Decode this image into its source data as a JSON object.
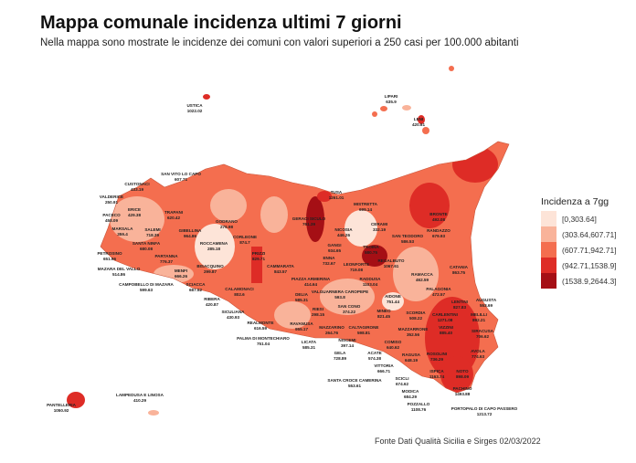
{
  "header": {
    "title": "Mappa comunale incidenza ultimi 7 giorni",
    "subtitle": "Nella mappa sono mostrate le incidenze dei comuni con valori superiori a 250 casi per 100.000 abitanti"
  },
  "legend": {
    "title": "Incidenza a 7gg",
    "classes": [
      {
        "label": "[0,303.64]",
        "color": "#fde4d8"
      },
      {
        "label": "(303.64,607.71]",
        "color": "#f9b39a"
      },
      {
        "label": "(607.71,942.71]",
        "color": "#f46e4f"
      },
      {
        "label": "(942.71,1538.9]",
        "color": "#de2c26"
      },
      {
        "label": "(1538.9,2644.3]",
        "color": "#a50f15"
      }
    ]
  },
  "labels": [
    {
      "name": "USTICA",
      "value": "1022.02"
    },
    {
      "name": "LIPARI",
      "value": "635.9"
    },
    {
      "name": "LENI",
      "value": "420.61"
    },
    {
      "name": "SAN VITO LO CAPO",
      "value": "607.71"
    },
    {
      "name": "CUSTONACI",
      "value": "433.19"
    },
    {
      "name": "VALDERICE",
      "value": "250.91"
    },
    {
      "name": "ERICE",
      "value": "429.38"
    },
    {
      "name": "PACECO",
      "value": "458.09"
    },
    {
      "name": "TRAPANI",
      "value": "620.42"
    },
    {
      "name": "MARSALA",
      "value": "359.4"
    },
    {
      "name": "SALEMI",
      "value": "718.39"
    },
    {
      "name": "GIBELLINA",
      "value": "964.86"
    },
    {
      "name": "GODRANO",
      "value": "276.98"
    },
    {
      "name": "ROCCAMENA",
      "value": "285.18"
    },
    {
      "name": "CORLEONE",
      "value": "874.7"
    },
    {
      "name": "SANTA NINFA",
      "value": "680.08"
    },
    {
      "name": "PARTANNA",
      "value": "776.37"
    },
    {
      "name": "PETROSINO",
      "value": "651.96"
    },
    {
      "name": "MAZARA DEL VALLO",
      "value": "514.86"
    },
    {
      "name": "MENFI",
      "value": "666.26"
    },
    {
      "name": "BISACQUINO",
      "value": "299.87"
    },
    {
      "name": "PRIZZI",
      "value": "829.71"
    },
    {
      "name": "CALAMONACI",
      "value": "802.6"
    },
    {
      "name": "CAMPOBELLO DI MAZARA",
      "value": "599.63"
    },
    {
      "name": "SCIACCA",
      "value": "687.52"
    },
    {
      "name": "RIBERA",
      "value": "420.87"
    },
    {
      "name": "SICULIANA",
      "value": "430.93"
    },
    {
      "name": "REALMONTE",
      "value": "616.59"
    },
    {
      "name": "PALMA DI MONTECHIARO",
      "value": "751.04"
    },
    {
      "name": "LICATA",
      "value": "585.31"
    },
    {
      "name": "TUSA",
      "value": "1261.01"
    },
    {
      "name": "MISTRETTA",
      "value": "699.14"
    },
    {
      "name": "GERACI SICULO",
      "value": "761.39"
    },
    {
      "name": "NICOSIA",
      "value": "446.26"
    },
    {
      "name": "CERAMI",
      "value": "332.19"
    },
    {
      "name": "SAN TEODORO",
      "value": "586.53"
    },
    {
      "name": "BRONTE",
      "value": "492.08"
    },
    {
      "name": "RANDAZZO",
      "value": "679.93"
    },
    {
      "name": "GANGI",
      "value": "934.65"
    },
    {
      "name": "TROINA",
      "value": "580.75"
    },
    {
      "name": "CAMMARATA",
      "value": "843.57"
    },
    {
      "name": "ENNA",
      "value": "732.67"
    },
    {
      "name": "LEONFORTE",
      "value": "719.08"
    },
    {
      "name": "REGALBUTO",
      "value": "1067.61"
    },
    {
      "name": "PIAZZA ARMERINA",
      "value": "414.64"
    },
    {
      "name": "VALGUARNERA CAROPEPE",
      "value": "593.8"
    },
    {
      "name": "RADDUSA",
      "value": "1103.04"
    },
    {
      "name": "RAMACCA",
      "value": "462.59"
    },
    {
      "name": "AIDONE",
      "value": "751.44"
    },
    {
      "name": "PALAGONIA",
      "value": "472.57"
    },
    {
      "name": "DELIA",
      "value": "585.31"
    },
    {
      "name": "SAN CONO",
      "value": "374.22"
    },
    {
      "name": "RIESI",
      "value": "298.15"
    },
    {
      "name": "MINEO",
      "value": "821.45"
    },
    {
      "name": "SCORDIA",
      "value": "508.22"
    },
    {
      "name": "RAVANUSA",
      "value": "955.17"
    },
    {
      "name": "MAZZARINO",
      "value": "264.76"
    },
    {
      "name": "CALTAGIRONE",
      "value": "598.81"
    },
    {
      "name": "MAZZARRONE",
      "value": "352.56"
    },
    {
      "name": "NISCEMI",
      "value": "397.14"
    },
    {
      "name": "GELA",
      "value": "728.89"
    },
    {
      "name": "ACATE",
      "value": "574.38"
    },
    {
      "name": "COMISO",
      "value": "640.62"
    },
    {
      "name": "VITTORIA",
      "value": "666.71"
    },
    {
      "name": "SANTA CROCE CAMERINA",
      "value": "553.61"
    },
    {
      "name": "SCICLI",
      "value": "674.62"
    },
    {
      "name": "CATANIA",
      "value": "863.75"
    },
    {
      "name": "LENTINI",
      "value": "827.83"
    },
    {
      "name": "CARLENTINI",
      "value": "1271.08"
    },
    {
      "name": "AUGUSTA",
      "value": "553.69"
    },
    {
      "name": "MELILLI",
      "value": "892.21"
    },
    {
      "name": "VIZZINI",
      "value": "885.40"
    },
    {
      "name": "SIRACUSA",
      "value": "706.62"
    },
    {
      "name": "AVOLA",
      "value": "774.63"
    },
    {
      "name": "RAGUSA",
      "value": "648.19"
    },
    {
      "name": "ROSOLINI",
      "value": "736.29"
    },
    {
      "name": "MODICA",
      "value": "684.29"
    },
    {
      "name": "ISPICA",
      "value": "1163.74"
    },
    {
      "name": "NOTO",
      "value": "898.09"
    },
    {
      "name": "PACHINO",
      "value": "1493.88"
    },
    {
      "name": "POZZALLO",
      "value": "1108.76"
    },
    {
      "name": "PORTOPALO DI CAPO PASSERO",
      "value": "1213.72"
    },
    {
      "name": "LAMPEDUSA E LINOSA",
      "value": "410.29"
    },
    {
      "name": "PANTELLERIA",
      "value": "1050.92"
    }
  ],
  "footer": {
    "source": "Fonte Dati Qualità Sicilia e Sirges 02/03/2022"
  }
}
